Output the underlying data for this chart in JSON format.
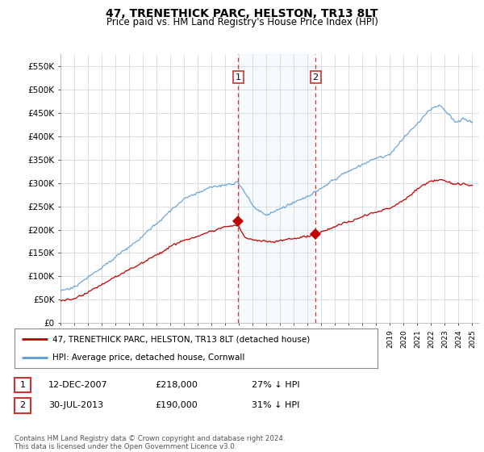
{
  "title": "47, TRENETHICK PARC, HELSTON, TR13 8LT",
  "subtitle": "Price paid vs. HM Land Registry's House Price Index (HPI)",
  "hpi_color": "#5b9bd5",
  "price_color": "#c00000",
  "grid_color": "#d0d0d0",
  "bg_color": "#ffffff",
  "ylim": [
    0,
    575000
  ],
  "yticks": [
    0,
    50000,
    100000,
    150000,
    200000,
    250000,
    300000,
    350000,
    400000,
    450000,
    500000,
    550000
  ],
  "ytick_labels": [
    "£0",
    "£50K",
    "£100K",
    "£150K",
    "£200K",
    "£250K",
    "£300K",
    "£350K",
    "£400K",
    "£450K",
    "£500K",
    "£550K"
  ],
  "purchase1_date": 2007.95,
  "purchase1_price": 218000,
  "purchase2_date": 2013.58,
  "purchase2_price": 190000,
  "vline1_x": 2007.95,
  "vline2_x": 2013.58,
  "legend_property": "47, TRENETHICK PARC, HELSTON, TR13 8LT (detached house)",
  "legend_hpi": "HPI: Average price, detached house, Cornwall",
  "table_row1": [
    "1",
    "12-DEC-2007",
    "£218,000",
    "27% ↓ HPI"
  ],
  "table_row2": [
    "2",
    "30-JUL-2013",
    "£190,000",
    "31% ↓ HPI"
  ],
  "footnote": "Contains HM Land Registry data © Crown copyright and database right 2024.\nThis data is licensed under the Open Government Licence v3.0.",
  "xmin": 1995.0,
  "xmax": 2025.5
}
